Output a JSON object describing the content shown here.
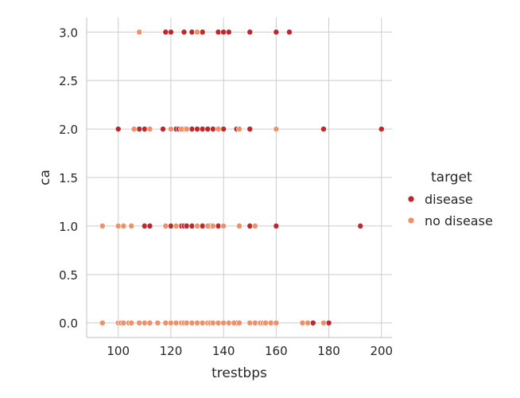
{
  "chart_data": {
    "type": "scatter",
    "xlabel": "trestbps",
    "ylabel": "ca",
    "xlim": [
      88,
      204
    ],
    "ylim": [
      -0.15,
      3.15
    ],
    "xticks": [
      100,
      120,
      140,
      160,
      180,
      200
    ],
    "yticks": [
      0.0,
      0.5,
      1.0,
      1.5,
      2.0,
      2.5,
      3.0
    ],
    "xtick_labels": [
      "100",
      "120",
      "140",
      "160",
      "180",
      "200"
    ],
    "ytick_labels": [
      "0.0",
      "0.5",
      "1.0",
      "1.5",
      "2.0",
      "2.5",
      "3.0"
    ],
    "grid": true,
    "legend": {
      "title": "target",
      "placement": "right",
      "entries": [
        {
          "label": "disease",
          "color": "#c0272d"
        },
        {
          "label": "no disease",
          "color": "#ee9068"
        }
      ]
    },
    "series": [
      {
        "name": "disease",
        "color": "#c0272d",
        "points": [
          [
            118,
            3
          ],
          [
            120,
            3
          ],
          [
            125,
            3
          ],
          [
            128,
            3
          ],
          [
            132,
            3
          ],
          [
            138,
            3
          ],
          [
            140,
            3
          ],
          [
            142,
            3
          ],
          [
            150,
            3
          ],
          [
            160,
            3
          ],
          [
            165,
            3
          ],
          [
            100,
            2
          ],
          [
            108,
            2
          ],
          [
            110,
            2
          ],
          [
            117,
            2
          ],
          [
            120,
            2
          ],
          [
            122,
            2
          ],
          [
            123,
            2
          ],
          [
            125,
            2
          ],
          [
            128,
            2
          ],
          [
            130,
            2
          ],
          [
            132,
            2
          ],
          [
            134,
            2
          ],
          [
            136,
            2
          ],
          [
            140,
            2
          ],
          [
            145,
            2
          ],
          [
            150,
            2
          ],
          [
            178,
            2
          ],
          [
            200,
            2
          ],
          [
            100,
            1
          ],
          [
            110,
            1
          ],
          [
            112,
            1
          ],
          [
            120,
            1
          ],
          [
            124,
            1
          ],
          [
            125,
            1
          ],
          [
            126,
            1
          ],
          [
            128,
            1
          ],
          [
            130,
            1
          ],
          [
            132,
            1
          ],
          [
            135,
            1
          ],
          [
            138,
            1
          ],
          [
            140,
            1
          ],
          [
            150,
            1
          ],
          [
            160,
            1
          ],
          [
            192,
            1
          ],
          [
            110,
            0
          ],
          [
            118,
            0
          ],
          [
            120,
            0
          ],
          [
            124,
            0
          ],
          [
            125,
            0
          ],
          [
            126,
            0
          ],
          [
            128,
            0
          ],
          [
            130,
            0
          ],
          [
            132,
            0
          ],
          [
            134,
            0
          ],
          [
            138,
            0
          ],
          [
            140,
            0
          ],
          [
            145,
            0
          ],
          [
            150,
            0
          ],
          [
            170,
            0
          ],
          [
            172,
            0
          ],
          [
            174,
            0
          ],
          [
            180,
            0
          ]
        ]
      },
      {
        "name": "no disease",
        "color": "#ee9068",
        "points": [
          [
            108,
            3
          ],
          [
            130,
            3
          ],
          [
            106,
            2
          ],
          [
            112,
            2
          ],
          [
            120,
            2
          ],
          [
            124,
            2
          ],
          [
            126,
            2
          ],
          [
            138,
            2
          ],
          [
            146,
            2
          ],
          [
            160,
            2
          ],
          [
            94,
            1
          ],
          [
            100,
            1
          ],
          [
            102,
            1
          ],
          [
            105,
            1
          ],
          [
            118,
            1
          ],
          [
            122,
            1
          ],
          [
            130,
            1
          ],
          [
            134,
            1
          ],
          [
            136,
            1
          ],
          [
            140,
            1
          ],
          [
            146,
            1
          ],
          [
            152,
            1
          ],
          [
            94,
            0
          ],
          [
            100,
            0
          ],
          [
            101,
            0
          ],
          [
            102,
            0
          ],
          [
            104,
            0
          ],
          [
            105,
            0
          ],
          [
            108,
            0
          ],
          [
            110,
            0
          ],
          [
            112,
            0
          ],
          [
            115,
            0
          ],
          [
            118,
            0
          ],
          [
            120,
            0
          ],
          [
            122,
            0
          ],
          [
            124,
            0
          ],
          [
            125,
            0
          ],
          [
            126,
            0
          ],
          [
            128,
            0
          ],
          [
            130,
            0
          ],
          [
            132,
            0
          ],
          [
            134,
            0
          ],
          [
            135,
            0
          ],
          [
            136,
            0
          ],
          [
            138,
            0
          ],
          [
            140,
            0
          ],
          [
            142,
            0
          ],
          [
            144,
            0
          ],
          [
            146,
            0
          ],
          [
            150,
            0
          ],
          [
            152,
            0
          ],
          [
            154,
            0
          ],
          [
            155,
            0
          ],
          [
            156,
            0
          ],
          [
            158,
            0
          ],
          [
            160,
            0
          ],
          [
            170,
            0
          ],
          [
            172,
            0
          ],
          [
            178,
            0
          ]
        ]
      }
    ]
  }
}
